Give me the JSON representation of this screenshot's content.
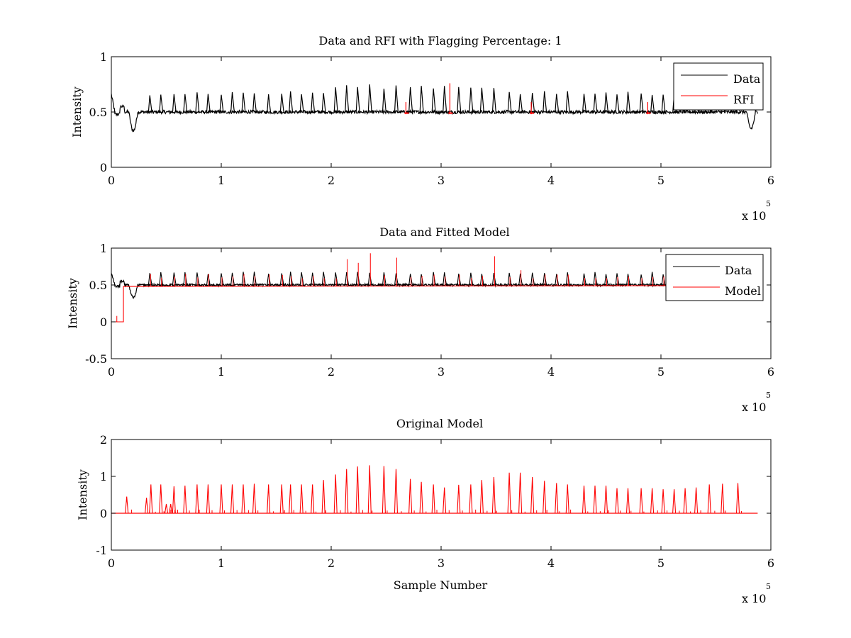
{
  "chart_data": [
    {
      "type": "line",
      "title": "Data and RFI with Flagging Percentage: 1",
      "xlabel": "",
      "ylabel": "Intensity",
      "xlim": [
        0,
        6
      ],
      "ylim": [
        0,
        1
      ],
      "x_ticks": [
        "0",
        "1",
        "2",
        "3",
        "4",
        "5",
        "6"
      ],
      "y_ticks": [
        "0",
        "0.5",
        "1"
      ],
      "x_multiplier": {
        "base": "x 10",
        "exponent": "5"
      },
      "legend": {
        "position": "top-right",
        "entries": [
          {
            "label": "Data",
            "color": "#000000"
          },
          {
            "label": "RFI",
            "color": "#ff0000"
          }
        ]
      },
      "baseline": 0.5,
      "spike_peak": 0.65,
      "spike_x": [
        0.35,
        0.45,
        0.57,
        0.67,
        0.78,
        0.88,
        1.0,
        1.1,
        1.2,
        1.3,
        1.43,
        1.55,
        1.63,
        1.73,
        1.83,
        1.93,
        2.04,
        2.14,
        2.24,
        2.35,
        2.48,
        2.59,
        2.72,
        2.82,
        2.93,
        3.03,
        3.16,
        3.27,
        3.37,
        3.48,
        3.62,
        3.72,
        3.83,
        3.94,
        4.05,
        4.15,
        4.3,
        4.4,
        4.5,
        4.6,
        4.7,
        4.82,
        4.92,
        5.02,
        5.12,
        5.22,
        5.32,
        5.44,
        5.56,
        5.7
      ],
      "dips": [
        {
          "x": 0.2,
          "y": 0.33
        },
        {
          "x": 5.82,
          "y": 0.35
        }
      ],
      "rfi_x": [
        2.68,
        3.08,
        3.82,
        4.88
      ],
      "series": [
        {
          "name": "Data",
          "color": "#000000"
        },
        {
          "name": "RFI",
          "color": "#ff0000"
        }
      ]
    },
    {
      "type": "line",
      "title": "Data and Fitted Model",
      "xlabel": "",
      "ylabel": "Intensity",
      "xlim": [
        0,
        6
      ],
      "ylim": [
        -0.5,
        1
      ],
      "x_ticks": [
        "0",
        "1",
        "2",
        "3",
        "4",
        "5",
        "6"
      ],
      "y_ticks": [
        "-0.5",
        "0",
        "0.5",
        "1"
      ],
      "x_multiplier": {
        "base": "x 10",
        "exponent": "5"
      },
      "legend": {
        "position": "top-right",
        "entries": [
          {
            "label": "Data",
            "color": "#000000"
          },
          {
            "label": "Model",
            "color": "#ff0000"
          }
        ]
      },
      "model_step": {
        "x_end": 0.11,
        "low": 0.0,
        "high": 0.48
      },
      "model_peaks": [
        0.5,
        0.6,
        0.65,
        0.7,
        0.8,
        0.85,
        0.93,
        0.6,
        0.87,
        0.6,
        0.89,
        0.7
      ],
      "series": [
        {
          "name": "Data",
          "color": "#000000"
        },
        {
          "name": "Model",
          "color": "#ff0000"
        }
      ]
    },
    {
      "type": "line",
      "title": "Original Model",
      "xlabel": "Sample Number",
      "ylabel": "Intensity",
      "xlim": [
        0,
        6
      ],
      "ylim": [
        -1,
        2
      ],
      "x_ticks": [
        "0",
        "1",
        "2",
        "3",
        "4",
        "5",
        "6"
      ],
      "y_ticks": [
        "-1",
        "0",
        "1",
        "2"
      ],
      "x_multiplier": {
        "base": "x 10",
        "exponent": "5"
      },
      "baseline": 0.0,
      "peaks": [
        {
          "x": 0.14,
          "y": 0.45
        },
        {
          "x": 0.32,
          "y": 0.42
        },
        {
          "x": 0.36,
          "y": 0.78
        },
        {
          "x": 0.45,
          "y": 0.78
        },
        {
          "x": 0.5,
          "y": 0.25
        },
        {
          "x": 0.54,
          "y": 0.25
        },
        {
          "x": 0.57,
          "y": 0.73
        },
        {
          "x": 0.67,
          "y": 0.75
        },
        {
          "x": 0.78,
          "y": 0.78
        },
        {
          "x": 0.88,
          "y": 0.78
        },
        {
          "x": 1.0,
          "y": 0.78
        },
        {
          "x": 1.1,
          "y": 0.78
        },
        {
          "x": 1.2,
          "y": 0.78
        },
        {
          "x": 1.3,
          "y": 0.8
        },
        {
          "x": 1.43,
          "y": 0.78
        },
        {
          "x": 1.55,
          "y": 0.78
        },
        {
          "x": 1.63,
          "y": 0.78
        },
        {
          "x": 1.73,
          "y": 0.78
        },
        {
          "x": 1.83,
          "y": 0.78
        },
        {
          "x": 1.93,
          "y": 0.9
        },
        {
          "x": 2.04,
          "y": 1.05
        },
        {
          "x": 2.14,
          "y": 1.2
        },
        {
          "x": 2.24,
          "y": 1.27
        },
        {
          "x": 2.35,
          "y": 1.3
        },
        {
          "x": 2.48,
          "y": 1.28
        },
        {
          "x": 2.59,
          "y": 1.2
        },
        {
          "x": 2.72,
          "y": 0.93
        },
        {
          "x": 2.82,
          "y": 0.85
        },
        {
          "x": 2.93,
          "y": 0.78
        },
        {
          "x": 3.03,
          "y": 0.7
        },
        {
          "x": 3.16,
          "y": 0.77
        },
        {
          "x": 3.27,
          "y": 0.78
        },
        {
          "x": 3.37,
          "y": 0.9
        },
        {
          "x": 3.48,
          "y": 0.98
        },
        {
          "x": 3.62,
          "y": 1.1
        },
        {
          "x": 3.72,
          "y": 1.1
        },
        {
          "x": 3.83,
          "y": 0.98
        },
        {
          "x": 3.94,
          "y": 0.88
        },
        {
          "x": 4.05,
          "y": 0.82
        },
        {
          "x": 4.15,
          "y": 0.78
        },
        {
          "x": 4.3,
          "y": 0.75
        },
        {
          "x": 4.4,
          "y": 0.75
        },
        {
          "x": 4.5,
          "y": 0.75
        },
        {
          "x": 4.6,
          "y": 0.68
        },
        {
          "x": 4.7,
          "y": 0.68
        },
        {
          "x": 4.82,
          "y": 0.68
        },
        {
          "x": 4.92,
          "y": 0.68
        },
        {
          "x": 5.02,
          "y": 0.65
        },
        {
          "x": 5.12,
          "y": 0.65
        },
        {
          "x": 5.22,
          "y": 0.68
        },
        {
          "x": 5.32,
          "y": 0.7
        },
        {
          "x": 5.44,
          "y": 0.78
        },
        {
          "x": 5.56,
          "y": 0.8
        },
        {
          "x": 5.7,
          "y": 0.82
        }
      ],
      "series": [
        {
          "name": "",
          "color": "#ff0000"
        }
      ]
    }
  ]
}
